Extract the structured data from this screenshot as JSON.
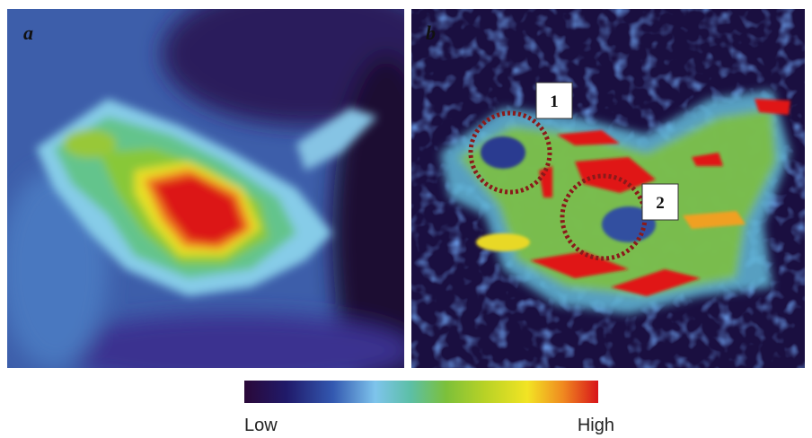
{
  "panels": [
    {
      "label": "a"
    },
    {
      "label": "b",
      "annotations": [
        "1",
        "2"
      ]
    }
  ],
  "colorbar": {
    "min_label": "Low",
    "max_label": "High"
  }
}
